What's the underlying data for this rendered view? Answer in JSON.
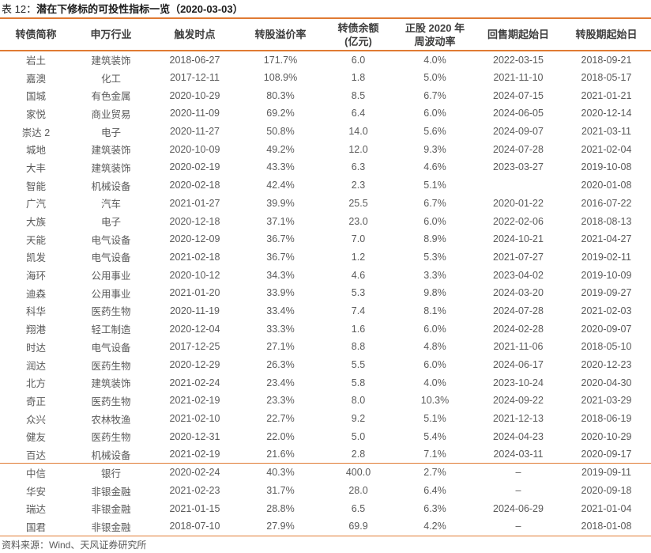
{
  "title": {
    "prefix": "表 12：",
    "main": "潜在下修标的可投性指标一览（2020-03-03）"
  },
  "source": "资料来源：Wind、天风证券研究所",
  "colors": {
    "accent": "#E07B33",
    "title_text": "#1A1A1A",
    "header_text": "#3D3D3D",
    "body_text": "#5A5A5A"
  },
  "table": {
    "columns": [
      {
        "key": "name",
        "label": "转债简称"
      },
      {
        "key": "industry",
        "label": "申万行业"
      },
      {
        "key": "trigger-date",
        "label": "触发时点"
      },
      {
        "key": "premium",
        "label": "转股溢价率"
      },
      {
        "key": "balance",
        "label": "转债余额\n(亿元)"
      },
      {
        "key": "volatility",
        "label": "正股 2020 年\n周波动率"
      },
      {
        "key": "put-start",
        "label": "回售期起始日"
      },
      {
        "key": "conversion-start",
        "label": "转股期起始日"
      }
    ],
    "groups": [
      {
        "rows": [
          [
            "岩土",
            "建筑装饰",
            "2018-06-27",
            "171.7%",
            "6.0",
            "4.0%",
            "2022-03-15",
            "2018-09-21"
          ],
          [
            "嘉澳",
            "化工",
            "2017-12-11",
            "108.9%",
            "1.8",
            "5.0%",
            "2021-11-10",
            "2018-05-17"
          ],
          [
            "国城",
            "有色金属",
            "2020-10-29",
            "80.3%",
            "8.5",
            "6.7%",
            "2024-07-15",
            "2021-01-21"
          ],
          [
            "家悦",
            "商业贸易",
            "2020-11-09",
            "69.2%",
            "6.4",
            "6.0%",
            "2024-06-05",
            "2020-12-14"
          ],
          [
            "崇达 2",
            "电子",
            "2020-11-27",
            "50.8%",
            "14.0",
            "5.6%",
            "2024-09-07",
            "2021-03-11"
          ],
          [
            "城地",
            "建筑装饰",
            "2020-10-09",
            "49.2%",
            "12.0",
            "9.3%",
            "2024-07-28",
            "2021-02-04"
          ],
          [
            "大丰",
            "建筑装饰",
            "2020-02-19",
            "43.3%",
            "6.3",
            "4.6%",
            "2023-03-27",
            "2019-10-08"
          ],
          [
            "智能",
            "机械设备",
            "2020-02-18",
            "42.4%",
            "2.3",
            "5.1%",
            "",
            "2020-01-08"
          ],
          [
            "广汽",
            "汽车",
            "2021-01-27",
            "39.9%",
            "25.5",
            "6.7%",
            "2020-01-22",
            "2016-07-22"
          ],
          [
            "大族",
            "电子",
            "2020-12-18",
            "37.1%",
            "23.0",
            "6.0%",
            "2022-02-06",
            "2018-08-13"
          ],
          [
            "天能",
            "电气设备",
            "2020-12-09",
            "36.7%",
            "7.0",
            "8.9%",
            "2024-10-21",
            "2021-04-27"
          ],
          [
            "凯发",
            "电气设备",
            "2021-02-18",
            "36.7%",
            "1.2",
            "5.3%",
            "2021-07-27",
            "2019-02-11"
          ],
          [
            "海环",
            "公用事业",
            "2020-10-12",
            "34.3%",
            "4.6",
            "3.3%",
            "2023-04-02",
            "2019-10-09"
          ],
          [
            "迪森",
            "公用事业",
            "2021-01-20",
            "33.9%",
            "5.3",
            "9.8%",
            "2024-03-20",
            "2019-09-27"
          ],
          [
            "科华",
            "医药生物",
            "2020-11-19",
            "33.4%",
            "7.4",
            "8.1%",
            "2024-07-28",
            "2021-02-03"
          ],
          [
            "翔港",
            "轻工制造",
            "2020-12-04",
            "33.3%",
            "1.6",
            "6.0%",
            "2024-02-28",
            "2020-09-07"
          ],
          [
            "时达",
            "电气设备",
            "2017-12-25",
            "27.1%",
            "8.8",
            "4.8%",
            "2021-11-06",
            "2018-05-10"
          ],
          [
            "润达",
            "医药生物",
            "2020-12-29",
            "26.3%",
            "5.5",
            "6.0%",
            "2024-06-17",
            "2020-12-23"
          ],
          [
            "北方",
            "建筑装饰",
            "2021-02-24",
            "23.4%",
            "5.8",
            "4.0%",
            "2023-10-24",
            "2020-04-30"
          ],
          [
            "奇正",
            "医药生物",
            "2021-02-19",
            "23.3%",
            "8.0",
            "10.3%",
            "2024-09-22",
            "2021-03-29"
          ],
          [
            "众兴",
            "农林牧渔",
            "2021-02-10",
            "22.7%",
            "9.2",
            "5.1%",
            "2021-12-13",
            "2018-06-19"
          ],
          [
            "健友",
            "医药生物",
            "2020-12-31",
            "22.0%",
            "5.0",
            "5.4%",
            "2024-04-23",
            "2020-10-29"
          ],
          [
            "百达",
            "机械设备",
            "2021-02-19",
            "21.6%",
            "2.8",
            "7.1%",
            "2024-03-11",
            "2020-09-17"
          ]
        ]
      },
      {
        "rows": [
          [
            "中信",
            "银行",
            "2020-02-24",
            "40.3%",
            "400.0",
            "2.7%",
            "–",
            "2019-09-11"
          ],
          [
            "华安",
            "非银金融",
            "2021-02-23",
            "31.7%",
            "28.0",
            "6.4%",
            "–",
            "2020-09-18"
          ],
          [
            "瑞达",
            "非银金融",
            "2021-01-15",
            "28.8%",
            "6.5",
            "6.3%",
            "2024-06-29",
            "2021-01-04"
          ],
          [
            "国君",
            "非银金融",
            "2018-07-10",
            "27.9%",
            "69.9",
            "4.2%",
            "–",
            "2018-01-08"
          ]
        ]
      }
    ]
  }
}
